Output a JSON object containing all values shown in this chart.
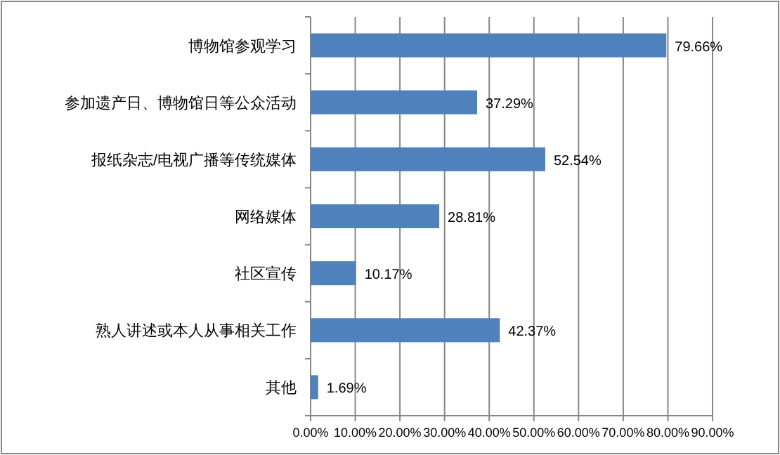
{
  "chart_data": {
    "type": "bar",
    "orientation": "horizontal",
    "categories": [
      "博物馆参观学习",
      "参加遗产日、博物馆日等公众活动",
      "报纸杂志/电视广播等传统媒体",
      "网络媒体",
      "社区宣传",
      "熟人讲述或本人从事相关工作",
      "其他"
    ],
    "values": [
      79.66,
      37.29,
      52.54,
      28.81,
      10.17,
      42.37,
      1.69
    ],
    "value_labels": [
      "79.66%",
      "37.29%",
      "52.54%",
      "28.81%",
      "10.17%",
      "42.37%",
      "1.69%"
    ],
    "color": "#4f81bd",
    "xlim": [
      0,
      90
    ],
    "xticks": [
      {
        "value": 0,
        "label": "0.00%"
      },
      {
        "value": 10,
        "label": "10.00%"
      },
      {
        "value": 20,
        "label": "20.00%"
      },
      {
        "value": 30,
        "label": "30.00%"
      },
      {
        "value": 40,
        "label": "40.00%"
      },
      {
        "value": 50,
        "label": "50.00%"
      },
      {
        "value": 60,
        "label": "60.00%"
      },
      {
        "value": 70,
        "label": "70.00%"
      },
      {
        "value": 80,
        "label": "80.00%"
      },
      {
        "value": 90,
        "label": "90.00%"
      }
    ],
    "grid": "x"
  }
}
